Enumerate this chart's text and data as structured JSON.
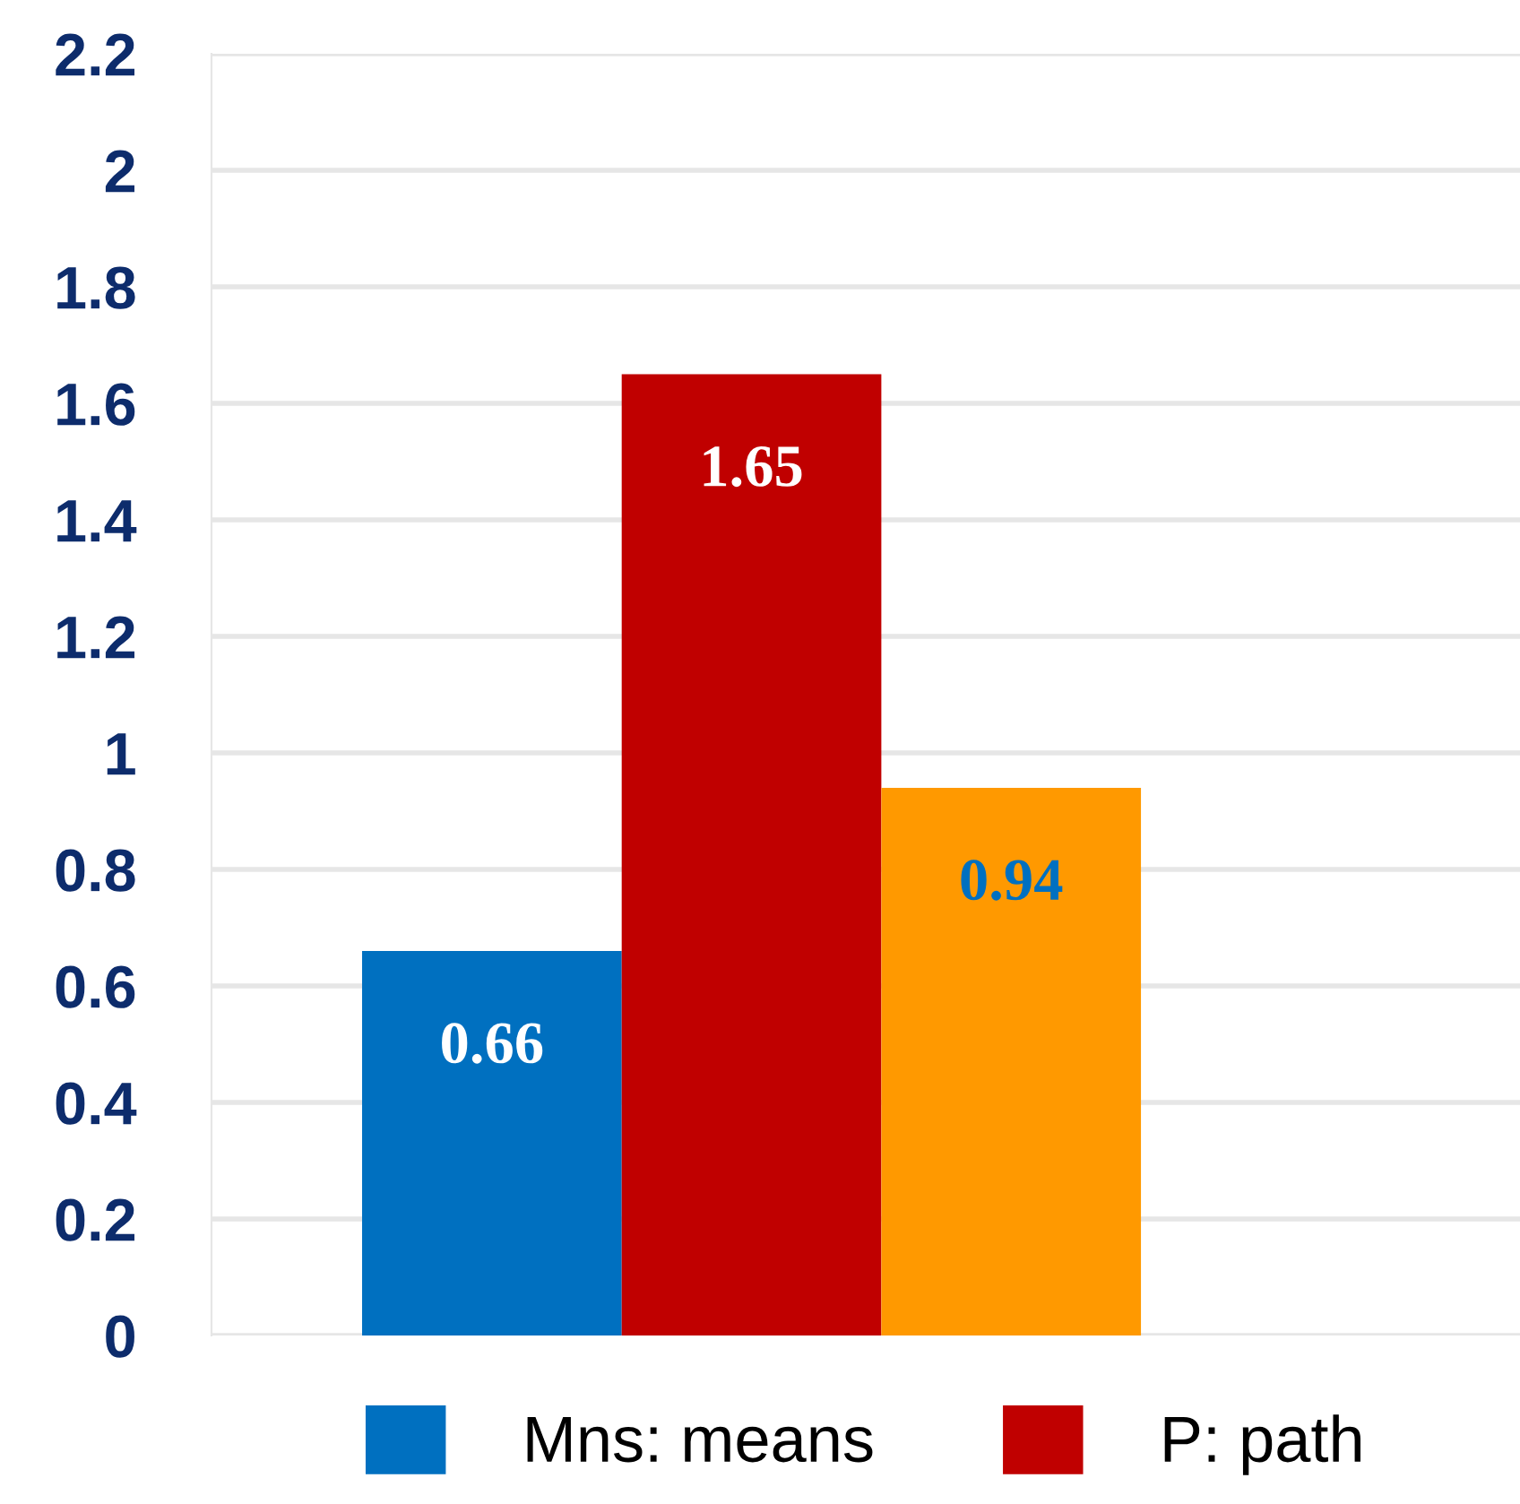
{
  "chart_data": {
    "type": "bar",
    "categories": [
      null
    ],
    "series": [
      {
        "name": "Mns: means",
        "color": "#0070c0",
        "values": [
          0.66
        ]
      },
      {
        "name": "P: path",
        "color": "#c00000",
        "values": [
          1.65
        ]
      },
      {
        "color": "#ff9900",
        "values": [
          0.94
        ]
      }
    ],
    "ylim": [
      0,
      2.2
    ],
    "yticks": [
      0,
      0.2,
      0.4,
      0.6,
      0.8,
      1,
      1.2,
      1.4,
      1.6,
      1.8,
      2,
      2.2
    ],
    "grid": "y",
    "legend": "bottom",
    "data_labels": true
  }
}
